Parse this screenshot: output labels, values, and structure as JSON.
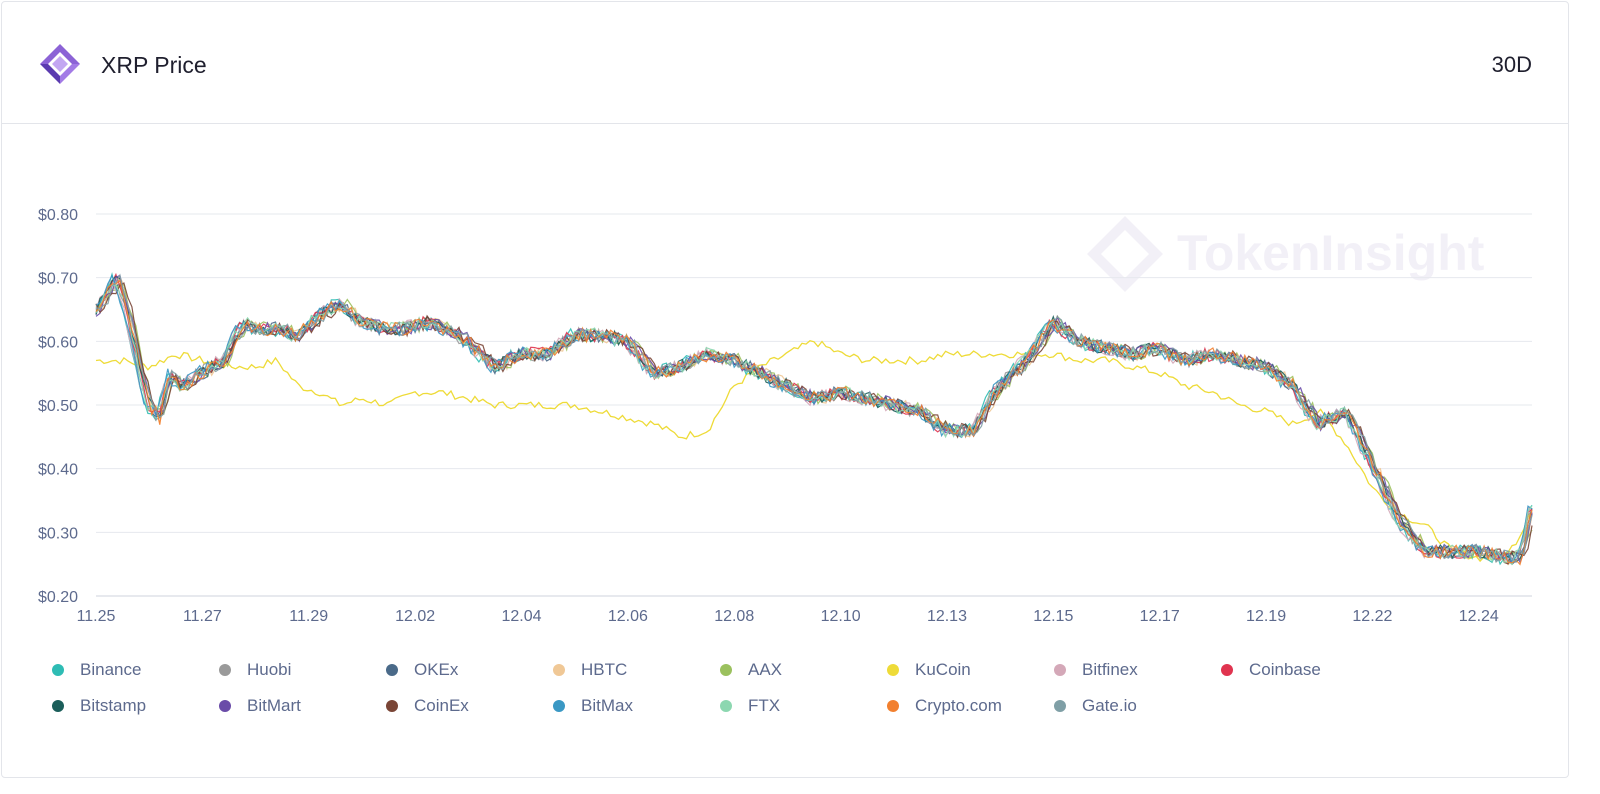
{
  "header": {
    "title": "XRP Price",
    "period": "30D"
  },
  "watermark": "TokenInsight",
  "colors": {
    "Binance": "#2ebcb4",
    "Huobi": "#9a9a9a",
    "OKEx": "#4a6a89",
    "HBTC": "#f0c896",
    "AAX": "#9bc15e",
    "KuCoin": "#eedb38",
    "Bitfinex": "#d4a8b8",
    "Coinbase": "#e0344f",
    "Bitstamp": "#1b5e5a",
    "BitMart": "#6a4ca8",
    "CoinEx": "#7a4536",
    "BitMax": "#3a98c4",
    "FTX": "#8cd7b0",
    "Crypto.com": "#f2802f",
    "Gate.io": "#7f9fa6"
  },
  "chart_data": {
    "type": "line",
    "title": "XRP Price",
    "ylim": [
      0.2,
      0.8
    ],
    "y_ticks": [
      "$0.80",
      "$0.70",
      "$0.60",
      "$0.50",
      "$0.40",
      "$0.30",
      "$0.20"
    ],
    "y_tick_values": [
      0.8,
      0.7,
      0.6,
      0.5,
      0.4,
      0.3,
      0.2
    ],
    "x_ticks": [
      "11.25",
      "11.27",
      "11.29",
      "12.02",
      "12.04",
      "12.06",
      "12.08",
      "12.10",
      "12.13",
      "12.15",
      "12.17",
      "12.19",
      "12.22",
      "12.24"
    ],
    "x_range_days": [
      0,
      27
    ],
    "x_tick_days": [
      0,
      2,
      4,
      6,
      8,
      10,
      12,
      14,
      16,
      18,
      20,
      22,
      24,
      26
    ],
    "grid": true,
    "legend_position": "bottom",
    "main_series_names": [
      "Binance",
      "Huobi",
      "OKEx",
      "HBTC",
      "AAX",
      "Bitfinex",
      "Coinbase",
      "Bitstamp",
      "BitMart",
      "CoinEx",
      "BitMax",
      "FTX",
      "Crypto.com",
      "Gate.io"
    ],
    "main_x": [
      0,
      0.2,
      0.4,
      0.6,
      0.8,
      1.0,
      1.2,
      1.4,
      1.6,
      1.8,
      2.0,
      2.4,
      2.8,
      3.0,
      3.4,
      3.8,
      4.2,
      4.6,
      5.0,
      5.4,
      5.8,
      6.2,
      6.6,
      7.0,
      7.5,
      8.0,
      8.5,
      9.0,
      9.5,
      10.0,
      10.5,
      11.0,
      11.5,
      12.0,
      12.5,
      13.0,
      13.5,
      14.0,
      14.5,
      15.0,
      15.5,
      16.0,
      16.5,
      17.0,
      17.5,
      18.0,
      18.5,
      19.0,
      19.5,
      20.0,
      20.2,
      20.5,
      21.0,
      21.5,
      22.0,
      22.5,
      23.0,
      23.5,
      24.0,
      24.5,
      25.0,
      25.2,
      25.5,
      26.0,
      26.5,
      26.8,
      27.0
    ],
    "main_y": [
      0.65,
      0.67,
      0.7,
      0.65,
      0.57,
      0.5,
      0.48,
      0.55,
      0.53,
      0.54,
      0.55,
      0.57,
      0.63,
      0.62,
      0.62,
      0.61,
      0.64,
      0.66,
      0.63,
      0.62,
      0.62,
      0.63,
      0.62,
      0.6,
      0.56,
      0.58,
      0.58,
      0.61,
      0.61,
      0.6,
      0.55,
      0.56,
      0.58,
      0.57,
      0.55,
      0.53,
      0.51,
      0.52,
      0.51,
      0.5,
      0.49,
      0.46,
      0.46,
      0.53,
      0.57,
      0.63,
      0.6,
      0.59,
      0.58,
      0.59,
      0.58,
      0.57,
      0.58,
      0.57,
      0.56,
      0.53,
      0.47,
      0.49,
      0.41,
      0.32,
      0.27,
      0.27,
      0.27,
      0.27,
      0.26,
      0.26,
      0.34
    ],
    "kucoin_x": [
      0,
      0.5,
      1.0,
      1.5,
      2.0,
      2.5,
      3.0,
      3.4,
      3.8,
      4.2,
      4.6,
      5.0,
      5.5,
      6.0,
      6.5,
      7.0,
      7.5,
      8.0,
      8.5,
      9.0,
      9.5,
      10.0,
      10.5,
      11.0,
      11.5,
      12.0,
      12.5,
      13.0,
      13.5,
      14.0,
      14.5,
      15.0,
      15.5,
      16.0,
      16.5,
      17.0,
      17.5,
      18.0,
      18.5,
      19.0,
      19.5,
      20.0,
      20.5,
      21.0,
      21.5,
      22.0,
      22.5,
      23.0,
      23.5,
      24.0,
      24.5,
      25.0,
      25.5,
      26.0,
      26.5,
      26.8,
      27.0
    ],
    "kucoin_y": [
      0.57,
      0.57,
      0.56,
      0.58,
      0.57,
      0.56,
      0.56,
      0.57,
      0.53,
      0.52,
      0.5,
      0.51,
      0.5,
      0.52,
      0.52,
      0.51,
      0.5,
      0.5,
      0.5,
      0.5,
      0.49,
      0.48,
      0.47,
      0.45,
      0.46,
      0.53,
      0.56,
      0.58,
      0.6,
      0.58,
      0.57,
      0.57,
      0.57,
      0.58,
      0.58,
      0.58,
      0.58,
      0.58,
      0.57,
      0.57,
      0.56,
      0.55,
      0.53,
      0.52,
      0.5,
      0.49,
      0.47,
      0.49,
      0.44,
      0.37,
      0.33,
      0.31,
      0.27,
      0.26,
      0.26,
      0.3,
      0.34
    ]
  },
  "legend": {
    "items": [
      "Binance",
      "Huobi",
      "OKEx",
      "HBTC",
      "AAX",
      "KuCoin",
      "Bitfinex",
      "Coinbase",
      "Bitstamp",
      "BitMart",
      "CoinEx",
      "BitMax",
      "FTX",
      "Crypto.com",
      "Gate.io"
    ]
  }
}
